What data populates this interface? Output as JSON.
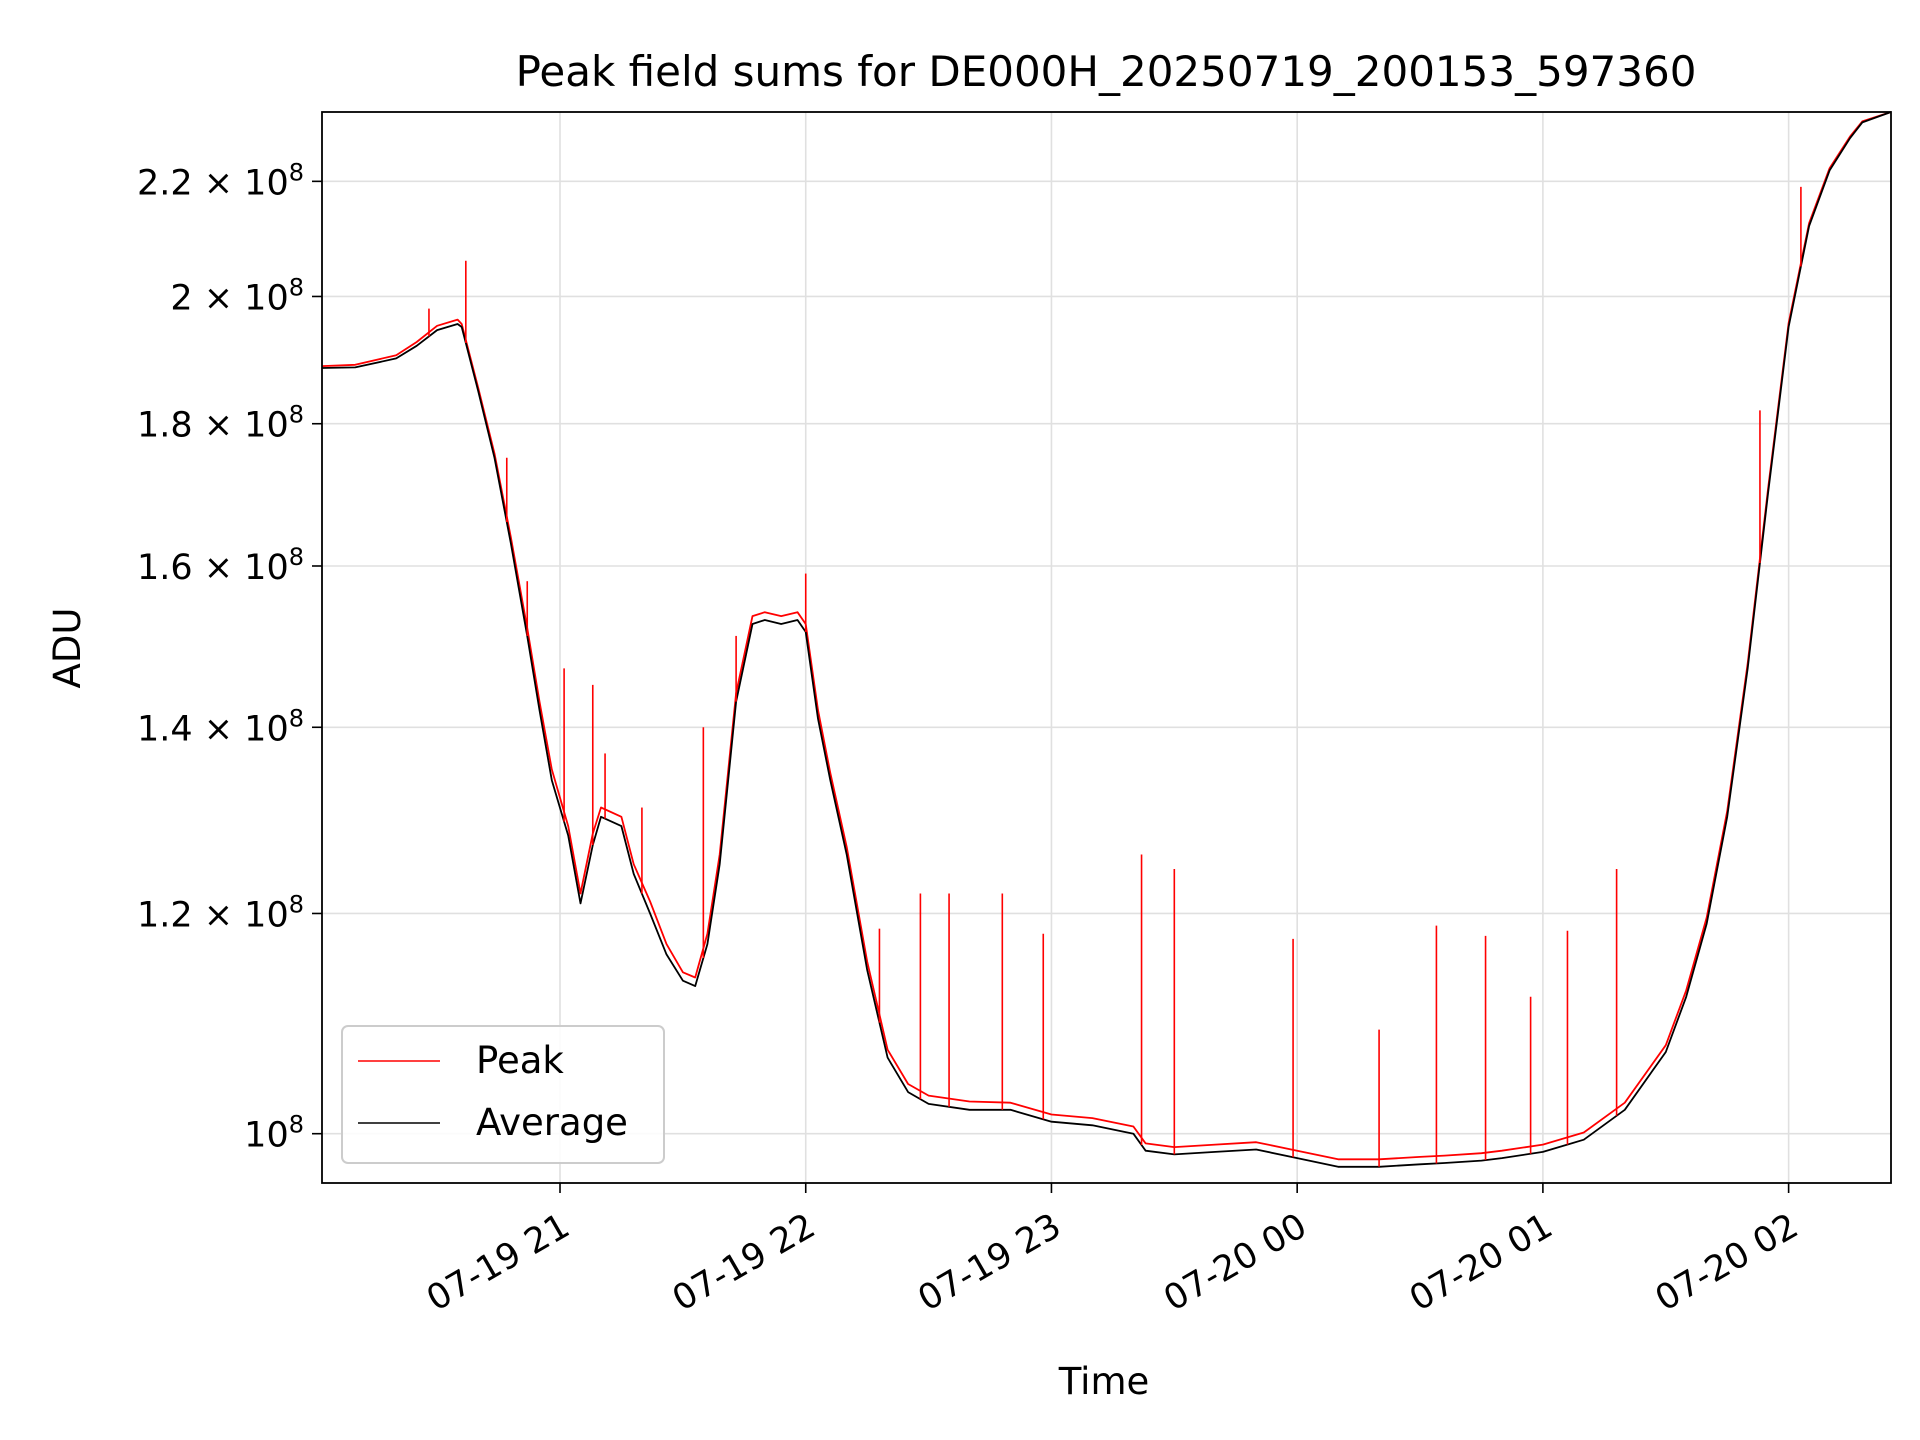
{
  "chart_data": {
    "type": "line",
    "title": "Peak field sums for DE000H_20250719_200153_597360",
    "xlabel": "Time",
    "ylabel": "ADU",
    "y_scale": "log",
    "ylim": [
      96000000,
      233000000
    ],
    "xlim": [
      "2025-07-19 20:01:53",
      "2025-07-20 02:25:00"
    ],
    "grid": true,
    "legend_position": "lower-left",
    "x_ticks": [
      {
        "value": "2025-07-19 21:00",
        "label": "07-19 21"
      },
      {
        "value": "2025-07-19 22:00",
        "label": "07-19 22"
      },
      {
        "value": "2025-07-19 23:00",
        "label": "07-19 23"
      },
      {
        "value": "2025-07-20 00:00",
        "label": "07-20 00"
      },
      {
        "value": "2025-07-20 01:00",
        "label": "07-20 01"
      },
      {
        "value": "2025-07-20 02:00",
        "label": "07-20 02"
      }
    ],
    "y_ticks": [
      {
        "value": 100000000,
        "mantissa": "",
        "exponent": "8"
      },
      {
        "value": 120000000,
        "mantissa": "1.2",
        "exponent": "8"
      },
      {
        "value": 140000000,
        "mantissa": "1.4",
        "exponent": "8"
      },
      {
        "value": 160000000,
        "mantissa": "1.6",
        "exponent": "8"
      },
      {
        "value": 180000000,
        "mantissa": "1.8",
        "exponent": "8"
      },
      {
        "value": 200000000,
        "mantissa": "2",
        "exponent": "8"
      },
      {
        "value": 220000000,
        "mantissa": "2.2",
        "exponent": "8"
      }
    ],
    "series": [
      {
        "name": "Average",
        "color": "#000000",
        "x": [
          "2025-07-19 20:01:53",
          "2025-07-19 20:10",
          "2025-07-19 20:20",
          "2025-07-19 20:25",
          "2025-07-19 20:30",
          "2025-07-19 20:35",
          "2025-07-19 20:36",
          "2025-07-19 20:40",
          "2025-07-19 20:44",
          "2025-07-19 20:48",
          "2025-07-19 20:52",
          "2025-07-19 20:55",
          "2025-07-19 20:58",
          "2025-07-19 21:02",
          "2025-07-19 21:05",
          "2025-07-19 21:08",
          "2025-07-19 21:10",
          "2025-07-19 21:15",
          "2025-07-19 21:18",
          "2025-07-19 21:22",
          "2025-07-19 21:26",
          "2025-07-19 21:30",
          "2025-07-19 21:33",
          "2025-07-19 21:36",
          "2025-07-19 21:39",
          "2025-07-19 21:43",
          "2025-07-19 21:47",
          "2025-07-19 21:50",
          "2025-07-19 21:54",
          "2025-07-19 21:58",
          "2025-07-19 22:00",
          "2025-07-19 22:03",
          "2025-07-19 22:06",
          "2025-07-19 22:10",
          "2025-07-19 22:15",
          "2025-07-19 22:20",
          "2025-07-19 22:25",
          "2025-07-19 22:30",
          "2025-07-19 22:40",
          "2025-07-19 22:50",
          "2025-07-19 23:00",
          "2025-07-19 23:10",
          "2025-07-19 23:20",
          "2025-07-19 23:23",
          "2025-07-19 23:30",
          "2025-07-19 23:40",
          "2025-07-19 23:50",
          "2025-07-20 00:00",
          "2025-07-20 00:10",
          "2025-07-20 00:20",
          "2025-07-20 00:30",
          "2025-07-20 00:36",
          "2025-07-20 00:45",
          "2025-07-20 00:50",
          "2025-07-20 01:00",
          "2025-07-20 01:10",
          "2025-07-20 01:20",
          "2025-07-20 01:30",
          "2025-07-20 01:35",
          "2025-07-20 01:40",
          "2025-07-20 01:45",
          "2025-07-20 01:50",
          "2025-07-20 01:55",
          "2025-07-20 02:00",
          "2025-07-20 02:05",
          "2025-07-20 02:10",
          "2025-07-20 02:15",
          "2025-07-20 02:18",
          "2025-07-20 02:25"
        ],
        "values": [
          188500000,
          188600000,
          190000000,
          192000000,
          194500000,
          195500000,
          195000000,
          185000000,
          175000000,
          163000000,
          151000000,
          142000000,
          134000000,
          128000000,
          121000000,
          127000000,
          130000000,
          129000000,
          124000000,
          120000000,
          116000000,
          113500000,
          113000000,
          117000000,
          125000000,
          143000000,
          152500000,
          153000000,
          152500000,
          153000000,
          151500000,
          141000000,
          134000000,
          126000000,
          114500000,
          106500000,
          103500000,
          102500000,
          102000000,
          102000000,
          101000000,
          100700000,
          100000000,
          98600000,
          98300000,
          98500000,
          98700000,
          98000000,
          97300000,
          97300000,
          97500000,
          97600000,
          97800000,
          98000000,
          98500000,
          99500000,
          102000000,
          107000000,
          112000000,
          119000000,
          130000000,
          147000000,
          170000000,
          195000000,
          212000000,
          222000000,
          228000000,
          231000000,
          233000000
        ]
      },
      {
        "name": "Peak",
        "color": "#ff0000",
        "x": [
          "2025-07-19 20:01:53",
          "2025-07-19 20:10",
          "2025-07-19 20:20",
          "2025-07-19 20:25",
          "2025-07-19 20:30",
          "2025-07-19 20:35",
          "2025-07-19 20:36",
          "2025-07-19 20:40",
          "2025-07-19 20:44",
          "2025-07-19 20:48",
          "2025-07-19 20:52",
          "2025-07-19 20:55",
          "2025-07-19 20:58",
          "2025-07-19 21:02",
          "2025-07-19 21:05",
          "2025-07-19 21:08",
          "2025-07-19 21:10",
          "2025-07-19 21:15",
          "2025-07-19 21:18",
          "2025-07-19 21:22",
          "2025-07-19 21:26",
          "2025-07-19 21:30",
          "2025-07-19 21:33",
          "2025-07-19 21:36",
          "2025-07-19 21:39",
          "2025-07-19 21:43",
          "2025-07-19 21:47",
          "2025-07-19 21:50",
          "2025-07-19 21:54",
          "2025-07-19 21:58",
          "2025-07-19 22:00",
          "2025-07-19 22:03",
          "2025-07-19 22:06",
          "2025-07-19 22:10",
          "2025-07-19 22:15",
          "2025-07-19 22:20",
          "2025-07-19 22:25",
          "2025-07-19 22:30",
          "2025-07-19 22:40",
          "2025-07-19 22:50",
          "2025-07-19 23:00",
          "2025-07-19 23:10",
          "2025-07-19 23:20",
          "2025-07-19 23:23",
          "2025-07-19 23:30",
          "2025-07-19 23:40",
          "2025-07-19 23:50",
          "2025-07-20 00:00",
          "2025-07-20 00:10",
          "2025-07-20 00:20",
          "2025-07-20 00:30",
          "2025-07-20 00:36",
          "2025-07-20 00:45",
          "2025-07-20 00:50",
          "2025-07-20 01:00",
          "2025-07-20 01:10",
          "2025-07-20 01:20",
          "2025-07-20 01:30",
          "2025-07-20 01:35",
          "2025-07-20 01:40",
          "2025-07-20 01:45",
          "2025-07-20 01:50",
          "2025-07-20 01:55",
          "2025-07-20 02:00",
          "2025-07-20 02:05",
          "2025-07-20 02:10",
          "2025-07-20 02:15",
          "2025-07-20 02:18",
          "2025-07-20 02:25"
        ],
        "values": [
          188800000,
          189000000,
          190500000,
          192600000,
          195200000,
          196200000,
          195500000,
          185500000,
          175600000,
          163800000,
          152000000,
          143000000,
          135200000,
          129000000,
          122000000,
          128200000,
          131000000,
          130000000,
          125000000,
          121200000,
          117000000,
          114300000,
          113800000,
          118000000,
          126000000,
          144000000,
          153500000,
          154000000,
          153500000,
          154000000,
          152500000,
          142000000,
          134800000,
          126800000,
          115300000,
          107200000,
          104200000,
          103200000,
          102700000,
          102600000,
          101600000,
          101300000,
          100600000,
          99200000,
          98900000,
          99100000,
          99300000,
          98600000,
          97900000,
          97900000,
          98100000,
          98200000,
          98400000,
          98600000,
          99100000,
          100100000,
          102600000,
          107600000,
          112600000,
          119600000,
          130600000,
          147600000,
          170600000,
          195600000,
          212500000,
          222400000,
          228300000,
          231200000,
          233000000
        ]
      }
    ],
    "annotations": {
      "peak_spikes": [
        {
          "x": "2025-07-19 20:37",
          "value": 206000000
        },
        {
          "x": "2025-07-19 20:28",
          "value": 198000000
        },
        {
          "x": "2025-07-19 20:47",
          "value": 175000000
        },
        {
          "x": "2025-07-19 20:52",
          "value": 158000000
        },
        {
          "x": "2025-07-19 21:01",
          "value": 147000000
        },
        {
          "x": "2025-07-19 21:08",
          "value": 145000000
        },
        {
          "x": "2025-07-19 21:11",
          "value": 137000000
        },
        {
          "x": "2025-07-19 21:20",
          "value": 131000000
        },
        {
          "x": "2025-07-19 21:35",
          "value": 140000000
        },
        {
          "x": "2025-07-19 21:43",
          "value": 151000000
        },
        {
          "x": "2025-07-19 22:00",
          "value": 159000000
        },
        {
          "x": "2025-07-19 22:18",
          "value": 118500000
        },
        {
          "x": "2025-07-19 22:28",
          "value": 122000000
        },
        {
          "x": "2025-07-19 22:35",
          "value": 122000000
        },
        {
          "x": "2025-07-19 22:48",
          "value": 122000000
        },
        {
          "x": "2025-07-19 22:58",
          "value": 118000000
        },
        {
          "x": "2025-07-19 23:22",
          "value": 126000000
        },
        {
          "x": "2025-07-19 23:30",
          "value": 124500000
        },
        {
          "x": "2025-07-19 23:59",
          "value": 117500000
        },
        {
          "x": "2025-07-20 00:20",
          "value": 109000000
        },
        {
          "x": "2025-07-20 00:34",
          "value": 118800000
        },
        {
          "x": "2025-07-20 00:46",
          "value": 117800000
        },
        {
          "x": "2025-07-20 00:57",
          "value": 112000000
        },
        {
          "x": "2025-07-20 01:06",
          "value": 118300000
        },
        {
          "x": "2025-07-20 01:18",
          "value": 124500000
        },
        {
          "x": "2025-07-20 01:53",
          "value": 182000000
        },
        {
          "x": "2025-07-20 02:03",
          "value": 219000000
        }
      ]
    }
  }
}
